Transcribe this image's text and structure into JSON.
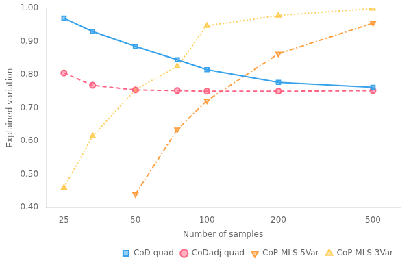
{
  "chart_data": {
    "type": "line",
    "x": [
      25,
      33,
      50,
      75,
      100,
      200,
      500
    ],
    "series": [
      {
        "name": "CoD quad",
        "values": [
          0.97,
          0.93,
          0.885,
          0.845,
          0.815,
          0.777,
          0.762
        ],
        "marker": "square",
        "line_style": "solid"
      },
      {
        "name": "CoDadj quad",
        "values": [
          0.805,
          0.768,
          0.754,
          0.752,
          0.75,
          0.75,
          0.752
        ],
        "marker": "circle",
        "line_style": "dashed"
      },
      {
        "name": "CoP MLS 5Var",
        "values": [
          null,
          null,
          0.44,
          0.635,
          0.722,
          0.863,
          0.955
        ],
        "marker": "triangle-down",
        "line_style": "dashdot"
      },
      {
        "name": "CoP MLS 3Var",
        "values": [
          0.46,
          0.615,
          0.755,
          0.825,
          0.947,
          0.978,
          0.999
        ],
        "marker": "triangle-up",
        "line_style": "dotted"
      }
    ],
    "xlabel": "Number of samples",
    "ylabel": "Explained variation",
    "log": "x",
    "xlim": [
      21,
      650
    ],
    "xticks": [
      25,
      50,
      100,
      200,
      500
    ],
    "ylim": [
      0.4,
      1.0
    ],
    "yticks": [
      {
        "value": 0.4,
        "label": "0.40"
      },
      {
        "value": 0.5,
        "label": "0.50"
      },
      {
        "value": 0.6,
        "label": "0.60"
      },
      {
        "value": 0.7,
        "label": "0.70"
      },
      {
        "value": 0.8,
        "label": "0.80"
      },
      {
        "value": 0.9,
        "label": "0.90"
      },
      {
        "value": 1.0,
        "label": "1.00"
      }
    ],
    "grid": false,
    "legend": "lower right"
  }
}
